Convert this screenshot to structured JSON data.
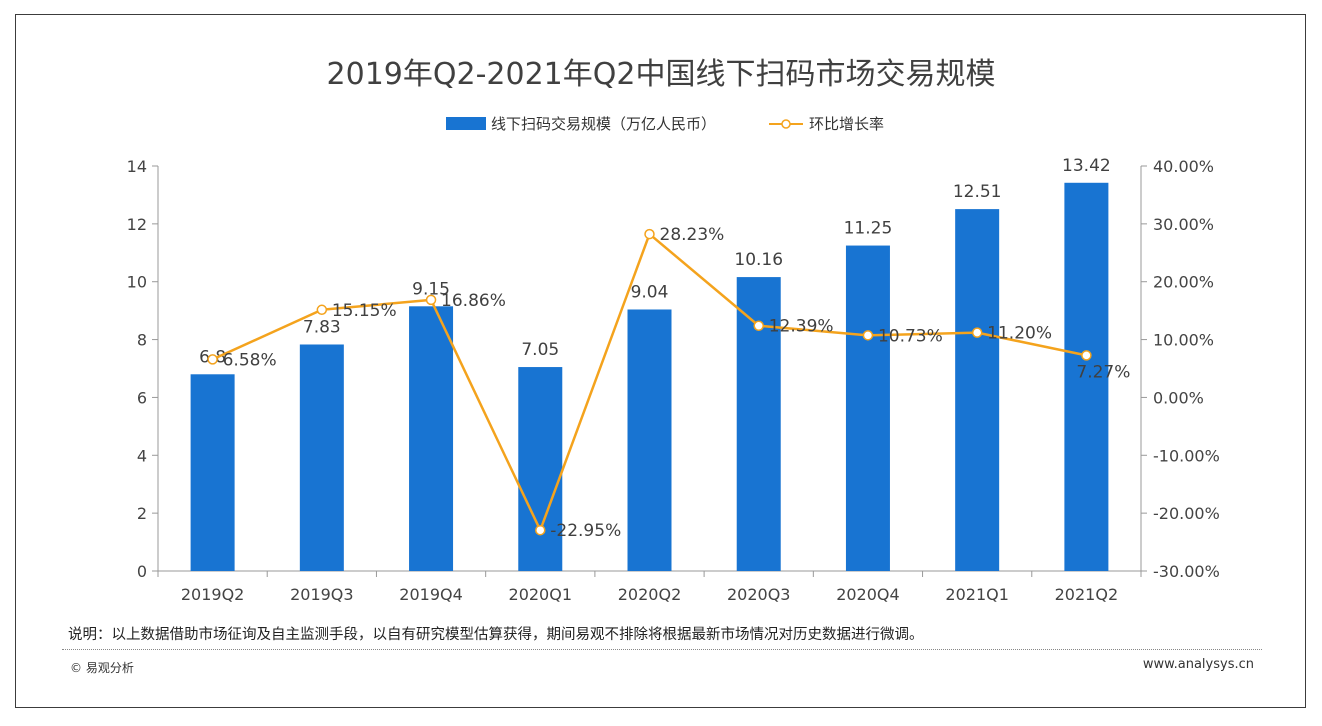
{
  "chart_data": {
    "type": "bar",
    "title": "2019年Q2-2021年Q2中国线下扫码市场交易规模",
    "categories": [
      "2019Q2",
      "2019Q3",
      "2019Q4",
      "2020Q1",
      "2020Q2",
      "2020Q3",
      "2020Q4",
      "2021Q1",
      "2021Q2"
    ],
    "series": [
      {
        "name": "线下扫码交易规模（万亿人民币）",
        "type": "bar",
        "axis": "left",
        "values": [
          6.8,
          7.83,
          9.15,
          7.05,
          9.04,
          10.16,
          11.25,
          12.51,
          13.42
        ],
        "labels": [
          "6.8",
          "7.83",
          "9.15",
          "7.05",
          "9.04",
          "10.16",
          "11.25",
          "12.51",
          "13.42"
        ]
      },
      {
        "name": "环比增长率",
        "type": "line",
        "axis": "right",
        "values": [
          6.58,
          15.15,
          16.86,
          -22.95,
          28.23,
          12.39,
          10.73,
          11.2,
          7.27
        ],
        "labels": [
          "6.58%",
          "15.15%",
          "16.86%",
          "-22.95%",
          "28.23%",
          "12.39%",
          "10.73%",
          "11.20%",
          "7.27%"
        ]
      }
    ],
    "y_left": {
      "min": 0,
      "max": 14,
      "ticks": [
        "0",
        "2",
        "4",
        "6",
        "8",
        "10",
        "12",
        "14"
      ]
    },
    "y_right": {
      "min": -30,
      "max": 40,
      "ticks": [
        "-30.00%",
        "-20.00%",
        "-10.00%",
        "0.00%",
        "10.00%",
        "20.00%",
        "30.00%",
        "40.00%"
      ]
    },
    "legend_position": "top-center",
    "grid": false,
    "colors": {
      "bar": "#1874d2",
      "line": "#f4a31d",
      "marker_fill": "#ffffff"
    }
  },
  "footer": {
    "note": "说明：以上数据借助市场征询及自主监测手段，以自有研究模型估算获得，期间易观不排除将根据最新市场情况对历史数据进行微调。",
    "copyright": "© 易观分析",
    "website": "www.analysys.cn"
  }
}
